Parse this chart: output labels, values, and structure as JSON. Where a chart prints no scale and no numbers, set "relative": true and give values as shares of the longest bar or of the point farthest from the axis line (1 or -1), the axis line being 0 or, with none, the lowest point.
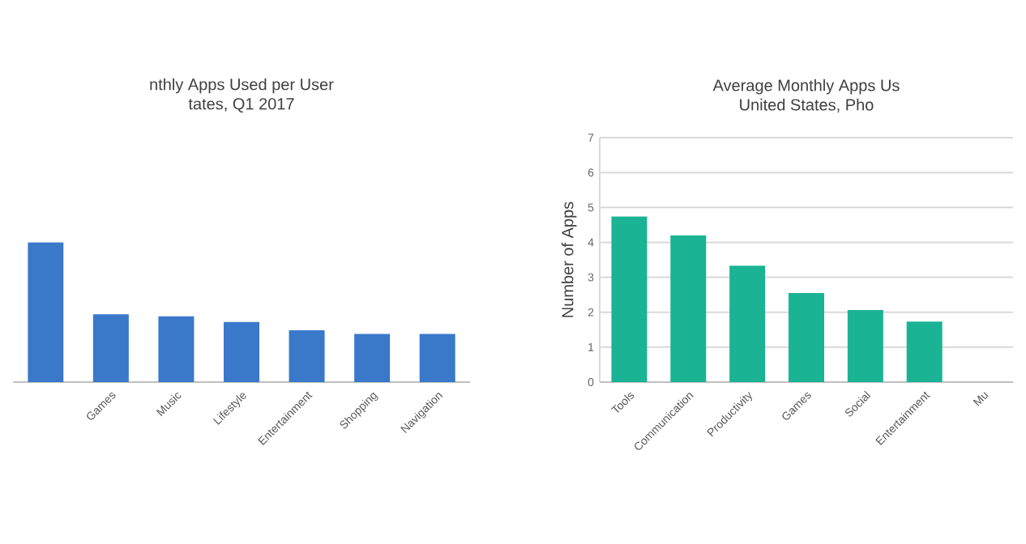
{
  "chart_data": [
    {
      "type": "bar",
      "title": "nthly Apps Used per User",
      "subtitle": "tates, Q1 2017",
      "relative": true,
      "color": "#3a78c9",
      "categories": [
        null,
        "Games",
        "Music",
        "Lifestyle",
        "Entertainment",
        "Shopping",
        "Navigation"
      ],
      "values": [
        1,
        0.485,
        0.47,
        0.43,
        0.37,
        0.345,
        0.345
      ]
    },
    {
      "type": "bar",
      "title": "Average Monthly Apps Us",
      "subtitle": "United States, Pho",
      "ylabel": "Number of Apps",
      "color": "#1ab394",
      "categories": [
        "Tools",
        "Communication",
        "Productivity",
        "Games",
        "Social",
        "Entertainment",
        "Mu"
      ],
      "values": [
        4.74,
        4.2,
        3.33,
        2.55,
        2.06,
        1.73,
        null
      ],
      "ylim": [
        0,
        7
      ],
      "yticks": [
        0,
        1,
        2,
        3,
        4,
        5,
        6,
        7
      ],
      "grid": "y"
    }
  ]
}
